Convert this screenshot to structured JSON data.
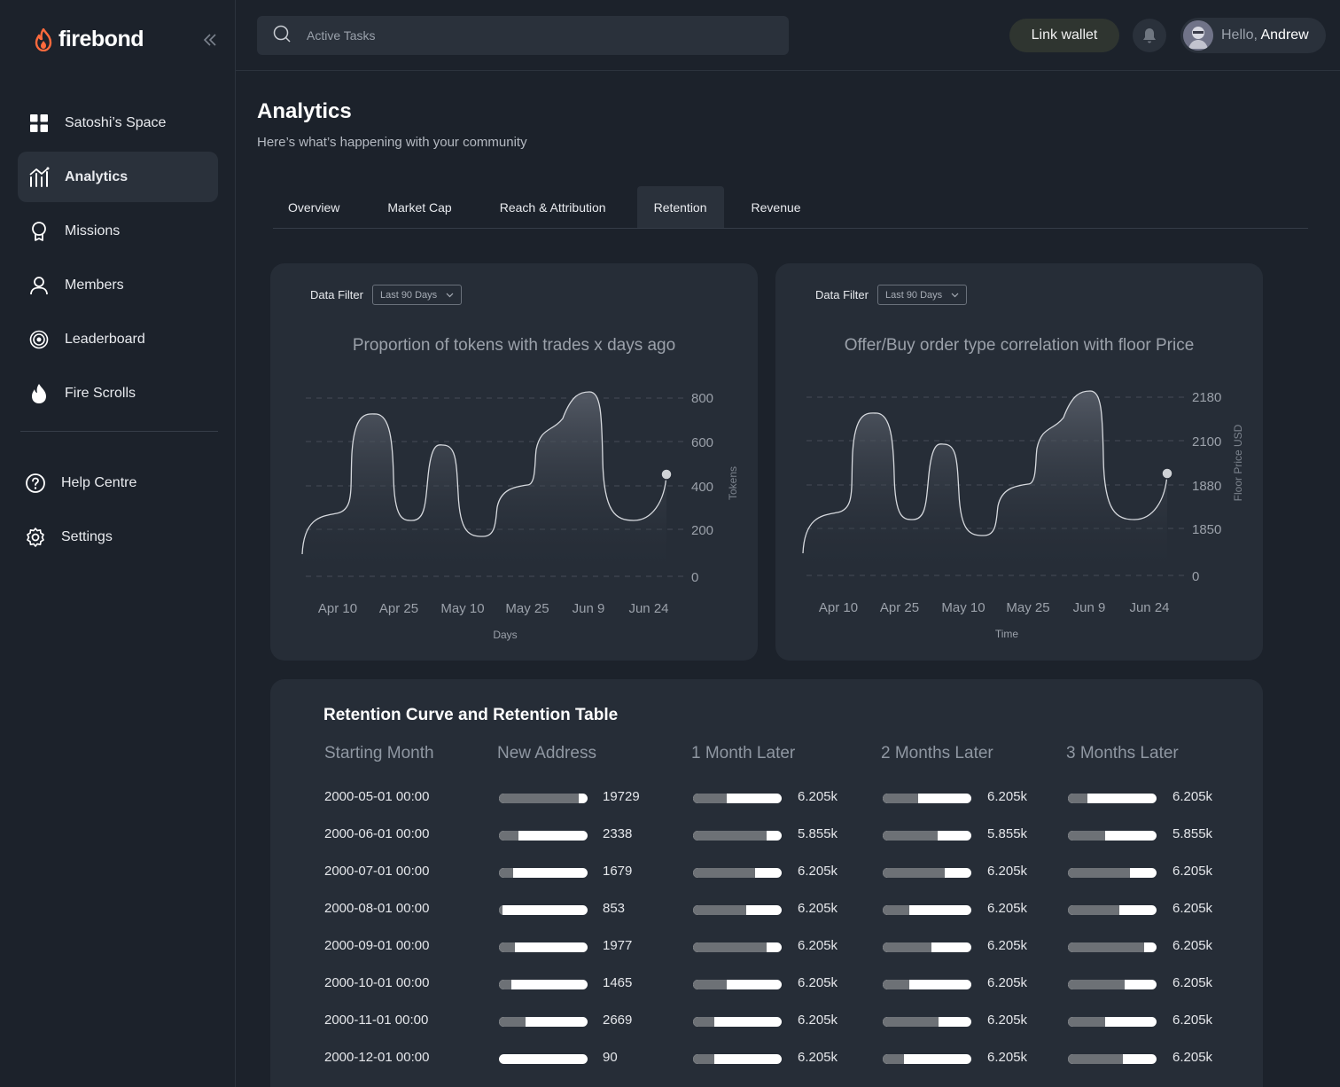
{
  "brand": {
    "name": "firebond"
  },
  "sidebar": {
    "items": [
      {
        "label": "Satoshi’s Space",
        "icon": "grid-icon"
      },
      {
        "label": "Analytics",
        "icon": "analytics-icon",
        "active": true
      },
      {
        "label": "Missions",
        "icon": "award-icon"
      },
      {
        "label": "Members",
        "icon": "user-icon"
      },
      {
        "label": "Leaderboard",
        "icon": "target-icon"
      },
      {
        "label": "Fire Scrolls",
        "icon": "flame-icon"
      }
    ],
    "secondary": [
      {
        "label": "Help Centre",
        "icon": "help-icon"
      },
      {
        "label": "Settings",
        "icon": "gear-icon"
      }
    ]
  },
  "topbar": {
    "search_placeholder": "Active Tasks",
    "link_wallet": "Link wallet",
    "greeting": "Hello,",
    "user_name": "Andrew"
  },
  "page": {
    "title": "Analytics",
    "subtitle": "Here’s what’s happening with your community"
  },
  "tabs": [
    {
      "label": "Overview"
    },
    {
      "label": "Market Cap"
    },
    {
      "label": "Reach & Attribution"
    },
    {
      "label": "Retention",
      "active": true
    },
    {
      "label": "Revenue"
    }
  ],
  "filters": {
    "label": "Data Filter",
    "value": "Last 90 Days"
  },
  "chart_data": [
    {
      "type": "area",
      "title": "Proportion of tokens with trades x days ago",
      "xlabel": "Days",
      "ylabel": "Tokens",
      "yticks": [
        "0",
        "200",
        "400",
        "600",
        "800"
      ],
      "xticks": [
        "Apr 10",
        "Apr 25",
        "May 10",
        "May 25",
        "Jun 9",
        "Jun 24"
      ],
      "y_axis_position": "right",
      "grid": true
    },
    {
      "type": "area",
      "title": "Offer/Buy order type correlation with floor Price",
      "xlabel": "Time",
      "ylabel": "Floor Price USD",
      "yticks": [
        "0",
        "1850",
        "1880",
        "2100",
        "2180"
      ],
      "xticks": [
        "Apr 10",
        "Apr 25",
        "May 10",
        "May 25",
        "Jun 9",
        "Jun 24"
      ],
      "y_axis_position": "right",
      "grid": true
    }
  ],
  "retention": {
    "title": "Retention Curve and Retention Table",
    "headers": [
      "Starting Month",
      "New Address",
      "1 Month Later",
      "2 Months Later",
      "3 Months Later"
    ],
    "rows": [
      {
        "month": "2000-05-01 00:00",
        "new": "19729",
        "m1": "6.205k",
        "m2": "6.205k",
        "m3": "6.205k",
        "fills": [
          0.9,
          0.38,
          0.4,
          0.22
        ]
      },
      {
        "month": "2000-06-01 00:00",
        "new": "2338",
        "m1": "5.855k",
        "m2": "5.855k",
        "m3": "5.855k",
        "fills": [
          0.22,
          0.83,
          0.62,
          0.42
        ]
      },
      {
        "month": "2000-07-01 00:00",
        "new": "1679",
        "m1": "6.205k",
        "m2": "6.205k",
        "m3": "6.205k",
        "fills": [
          0.16,
          0.7,
          0.7,
          0.7
        ]
      },
      {
        "month": "2000-08-01 00:00",
        "new": "853",
        "m1": "6.205k",
        "m2": "6.205k",
        "m3": "6.205k",
        "fills": [
          0.04,
          0.6,
          0.3,
          0.58
        ]
      },
      {
        "month": "2000-09-01 00:00",
        "new": "1977",
        "m1": "6.205k",
        "m2": "6.205k",
        "m3": "6.205k",
        "fills": [
          0.18,
          0.83,
          0.55,
          0.86
        ]
      },
      {
        "month": "2000-10-01 00:00",
        "new": "1465",
        "m1": "6.205k",
        "m2": "6.205k",
        "m3": "6.205k",
        "fills": [
          0.14,
          0.38,
          0.3,
          0.64
        ]
      },
      {
        "month": "2000-11-01 00:00",
        "new": "2669",
        "m1": "6.205k",
        "m2": "6.205k",
        "m3": "6.205k",
        "fills": [
          0.3,
          0.24,
          0.63,
          0.42
        ]
      },
      {
        "month": "2000-12-01 00:00",
        "new": "90",
        "m1": "6.205k",
        "m2": "6.205k",
        "m3": "6.205k",
        "fills": [
          0.0,
          0.24,
          0.24,
          0.62
        ]
      }
    ]
  }
}
